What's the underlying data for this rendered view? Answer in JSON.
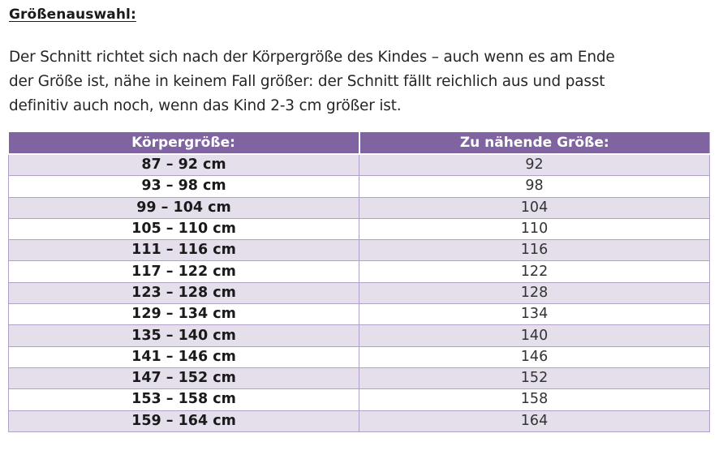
{
  "heading": "Größenauswahl:",
  "intro_lines": [
    "Der Schnitt richtet sich nach der Körpergröße des Kindes – auch wenn es am Ende",
    "der Größe ist, nähe in keinem Fall größer: der Schnitt fällt reichlich aus und passt",
    "definitiv auch noch, wenn das Kind 2-3 cm größer ist."
  ],
  "table": {
    "headers": [
      "Körpergröße:",
      "Zu nähende Größe:"
    ],
    "rows": [
      [
        "87 – 92 cm",
        "92"
      ],
      [
        "93 – 98 cm",
        "98"
      ],
      [
        "99 – 104 cm",
        "104"
      ],
      [
        "105 – 110 cm",
        "110"
      ],
      [
        "111 – 116 cm",
        "116"
      ],
      [
        "117 – 122 cm",
        "122"
      ],
      [
        "123 – 128 cm",
        "128"
      ],
      [
        "129 – 134 cm",
        "134"
      ],
      [
        "135 – 140 cm",
        "140"
      ],
      [
        "141 – 146 cm",
        "146"
      ],
      [
        "147 – 152 cm",
        "152"
      ],
      [
        "153 – 158 cm",
        "158"
      ],
      [
        "159 – 164 cm",
        "164"
      ]
    ]
  },
  "colors": {
    "header_bg": "#8064a2",
    "band_bg": "#e5dfec",
    "border": "#b2a1c7"
  }
}
